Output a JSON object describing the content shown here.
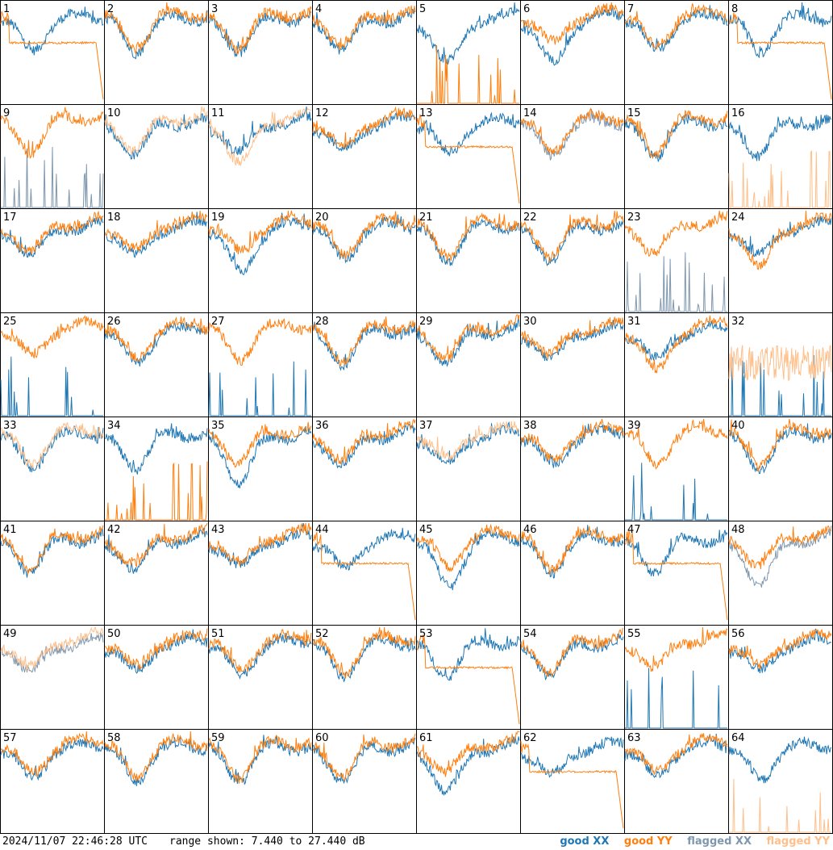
{
  "footer": {
    "timestamp": "2024/11/07 22:46:28 UTC",
    "range_text": "range shown: 7.440 to 27.440 dB"
  },
  "legend": [
    {
      "label": "good XX",
      "color": "#1f77b4"
    },
    {
      "label": "good YY",
      "color": "#ff7f0e"
    },
    {
      "label": "flagged XX",
      "color": "#7f97ad"
    },
    {
      "label": "flagged YY",
      "color": "#ffbf8a"
    }
  ],
  "colors": {
    "good_xx": "#1f77b4",
    "good_yy": "#ff7f0e",
    "flagged_xx": "#7f97ad",
    "flagged_yy": "#ffbf8a"
  },
  "chart_data": {
    "type": "line",
    "layout": "8x8 small multiples",
    "ylim": [
      7.44,
      27.44
    ],
    "y_unit": "dB",
    "tiles": [
      {
        "label": "1",
        "xx": "good",
        "yy": "good",
        "xx_shape": "normal",
        "yy_shape": "flat_drop"
      },
      {
        "label": "2",
        "xx": "good",
        "yy": "good",
        "xx_shape": "normal",
        "yy_shape": "normal"
      },
      {
        "label": "3",
        "xx": "good",
        "yy": "good",
        "xx_shape": "normal",
        "yy_shape": "normal"
      },
      {
        "label": "4",
        "xx": "good",
        "yy": "good",
        "xx_shape": "normal",
        "yy_shape": "normal"
      },
      {
        "label": "5",
        "xx": "good",
        "yy": "good",
        "xx_shape": "deep",
        "yy_shape": "spikes"
      },
      {
        "label": "6",
        "xx": "good",
        "yy": "good",
        "xx_shape": "deep",
        "yy_shape": "normal"
      },
      {
        "label": "7",
        "xx": "good",
        "yy": "good",
        "xx_shape": "normal",
        "yy_shape": "normal"
      },
      {
        "label": "8",
        "xx": "good",
        "yy": "good",
        "xx_shape": "normal",
        "yy_shape": "flat_drop"
      },
      {
        "label": "9",
        "xx": "flagged",
        "yy": "good",
        "xx_shape": "spikes",
        "yy_shape": "normal"
      },
      {
        "label": "10",
        "xx": "good",
        "yy": "flagged",
        "xx_shape": "normal",
        "yy_shape": "normal"
      },
      {
        "label": "11",
        "xx": "good",
        "yy": "flagged",
        "xx_shape": "normal",
        "yy_shape": "deep"
      },
      {
        "label": "12",
        "xx": "good",
        "yy": "good",
        "xx_shape": "normal",
        "yy_shape": "normal"
      },
      {
        "label": "13",
        "xx": "good",
        "yy": "good",
        "xx_shape": "normal",
        "yy_shape": "flat_drop"
      },
      {
        "label": "14",
        "xx": "flagged",
        "yy": "good",
        "xx_shape": "normal",
        "yy_shape": "normal"
      },
      {
        "label": "15",
        "xx": "good",
        "yy": "good",
        "xx_shape": "normal",
        "yy_shape": "normal"
      },
      {
        "label": "16",
        "xx": "good",
        "yy": "flagged",
        "xx_shape": "normal",
        "yy_shape": "spikes"
      },
      {
        "label": "17",
        "xx": "good",
        "yy": "good",
        "xx_shape": "normal",
        "yy_shape": "normal"
      },
      {
        "label": "18",
        "xx": "good",
        "yy": "good",
        "xx_shape": "normal",
        "yy_shape": "normal"
      },
      {
        "label": "19",
        "xx": "good",
        "yy": "good",
        "xx_shape": "deep",
        "yy_shape": "normal"
      },
      {
        "label": "20",
        "xx": "good",
        "yy": "good",
        "xx_shape": "normal",
        "yy_shape": "normal"
      },
      {
        "label": "21",
        "xx": "good",
        "yy": "good",
        "xx_shape": "normal",
        "yy_shape": "normal"
      },
      {
        "label": "22",
        "xx": "good",
        "yy": "good",
        "xx_shape": "normal",
        "yy_shape": "normal"
      },
      {
        "label": "23",
        "xx": "flagged",
        "yy": "good",
        "xx_shape": "spikes",
        "yy_shape": "normal"
      },
      {
        "label": "24",
        "xx": "good",
        "yy": "good",
        "xx_shape": "normal",
        "yy_shape": "deep"
      },
      {
        "label": "25",
        "xx": "good",
        "yy": "good",
        "xx_shape": "spikes",
        "yy_shape": "normal"
      },
      {
        "label": "26",
        "xx": "good",
        "yy": "good",
        "xx_shape": "normal",
        "yy_shape": "normal"
      },
      {
        "label": "27",
        "xx": "good",
        "yy": "good",
        "xx_shape": "spikes",
        "yy_shape": "normal"
      },
      {
        "label": "28",
        "xx": "good",
        "yy": "good",
        "xx_shape": "normal",
        "yy_shape": "normal"
      },
      {
        "label": "29",
        "xx": "good",
        "yy": "good",
        "xx_shape": "normal",
        "yy_shape": "normal"
      },
      {
        "label": "30",
        "xx": "good",
        "yy": "good",
        "xx_shape": "normal",
        "yy_shape": "normal"
      },
      {
        "label": "31",
        "xx": "good",
        "yy": "good",
        "xx_shape": "normal",
        "yy_shape": "deep"
      },
      {
        "label": "32",
        "xx": "good",
        "yy": "flagged",
        "xx_shape": "spikes",
        "yy_shape": "noisy"
      },
      {
        "label": "33",
        "xx": "good",
        "yy": "flagged",
        "xx_shape": "normal",
        "yy_shape": "normal"
      },
      {
        "label": "34",
        "xx": "good",
        "yy": "good",
        "xx_shape": "normal",
        "yy_shape": "spikes"
      },
      {
        "label": "35",
        "xx": "good",
        "yy": "good",
        "xx_shape": "deep",
        "yy_shape": "normal"
      },
      {
        "label": "36",
        "xx": "good",
        "yy": "good",
        "xx_shape": "normal",
        "yy_shape": "normal"
      },
      {
        "label": "37",
        "xx": "good",
        "yy": "flagged",
        "xx_shape": "normal",
        "yy_shape": "normal"
      },
      {
        "label": "38",
        "xx": "good",
        "yy": "good",
        "xx_shape": "normal",
        "yy_shape": "normal"
      },
      {
        "label": "39",
        "xx": "good",
        "yy": "good",
        "xx_shape": "spikes",
        "yy_shape": "normal"
      },
      {
        "label": "40",
        "xx": "good",
        "yy": "good",
        "xx_shape": "normal",
        "yy_shape": "normal"
      },
      {
        "label": "41",
        "xx": "good",
        "yy": "good",
        "xx_shape": "normal",
        "yy_shape": "normal"
      },
      {
        "label": "42",
        "xx": "good",
        "yy": "good",
        "xx_shape": "normal",
        "yy_shape": "normal"
      },
      {
        "label": "43",
        "xx": "good",
        "yy": "good",
        "xx_shape": "normal",
        "yy_shape": "normal"
      },
      {
        "label": "44",
        "xx": "good",
        "yy": "good",
        "xx_shape": "normal",
        "yy_shape": "flat_drop"
      },
      {
        "label": "45",
        "xx": "good",
        "yy": "good",
        "xx_shape": "deep",
        "yy_shape": "normal"
      },
      {
        "label": "46",
        "xx": "good",
        "yy": "good",
        "xx_shape": "normal",
        "yy_shape": "normal"
      },
      {
        "label": "47",
        "xx": "good",
        "yy": "good",
        "xx_shape": "normal",
        "yy_shape": "flat_drop"
      },
      {
        "label": "48",
        "xx": "flagged",
        "yy": "good",
        "xx_shape": "deep",
        "yy_shape": "normal"
      },
      {
        "label": "49",
        "xx": "flagged",
        "yy": "flagged",
        "xx_shape": "normal",
        "yy_shape": "normal"
      },
      {
        "label": "50",
        "xx": "good",
        "yy": "good",
        "xx_shape": "normal",
        "yy_shape": "normal"
      },
      {
        "label": "51",
        "xx": "good",
        "yy": "good",
        "xx_shape": "normal",
        "yy_shape": "normal"
      },
      {
        "label": "52",
        "xx": "good",
        "yy": "good",
        "xx_shape": "normal",
        "yy_shape": "normal"
      },
      {
        "label": "53",
        "xx": "good",
        "yy": "good",
        "xx_shape": "normal",
        "yy_shape": "flat_drop"
      },
      {
        "label": "54",
        "xx": "good",
        "yy": "good",
        "xx_shape": "normal",
        "yy_shape": "normal"
      },
      {
        "label": "55",
        "xx": "good",
        "yy": "good",
        "xx_shape": "spikes",
        "yy_shape": "normal"
      },
      {
        "label": "56",
        "xx": "good",
        "yy": "good",
        "xx_shape": "normal",
        "yy_shape": "normal"
      },
      {
        "label": "57",
        "xx": "good",
        "yy": "good",
        "xx_shape": "normal",
        "yy_shape": "normal"
      },
      {
        "label": "58",
        "xx": "good",
        "yy": "good",
        "xx_shape": "normal",
        "yy_shape": "normal"
      },
      {
        "label": "59",
        "xx": "good",
        "yy": "good",
        "xx_shape": "normal",
        "yy_shape": "normal"
      },
      {
        "label": "60",
        "xx": "good",
        "yy": "good",
        "xx_shape": "normal",
        "yy_shape": "normal"
      },
      {
        "label": "61",
        "xx": "good",
        "yy": "good",
        "xx_shape": "deep",
        "yy_shape": "normal"
      },
      {
        "label": "62",
        "xx": "good",
        "yy": "good",
        "xx_shape": "normal",
        "yy_shape": "flat_drop"
      },
      {
        "label": "63",
        "xx": "good",
        "yy": "good",
        "xx_shape": "normal",
        "yy_shape": "normal"
      },
      {
        "label": "64",
        "xx": "good",
        "yy": "flagged",
        "xx_shape": "normal",
        "yy_shape": "spikes"
      }
    ]
  }
}
